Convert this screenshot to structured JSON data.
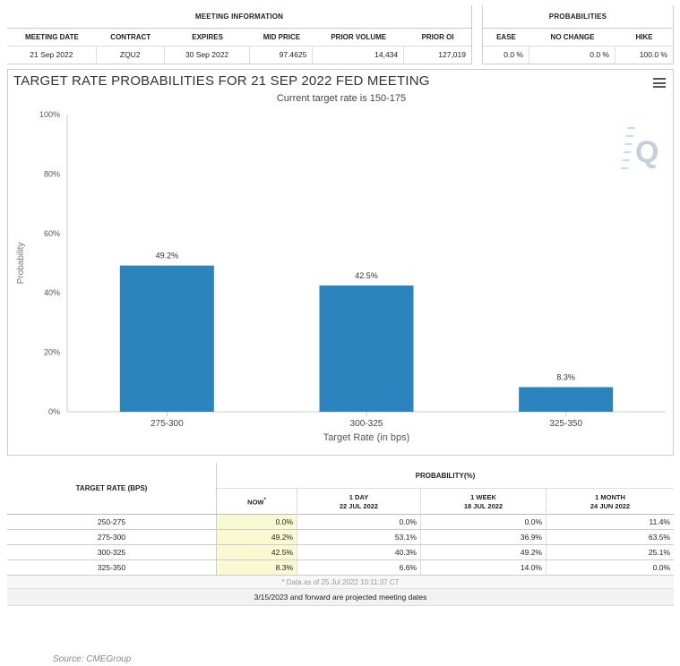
{
  "meeting_info": {
    "title": "MEETING INFORMATION",
    "headers": [
      "MEETING DATE",
      "CONTRACT",
      "EXPIRES",
      "MID PRICE",
      "PRIOR VOLUME",
      "PRIOR OI"
    ],
    "values": [
      "21 Sep 2022",
      "ZQU2",
      "30 Sep 2022",
      "97.4625",
      "14,434",
      "127,019"
    ]
  },
  "probabilities": {
    "title": "PROBABILITIES",
    "headers": [
      "EASE",
      "NO CHANGE",
      "HIKE"
    ],
    "values": [
      "0.0 %",
      "0.0 %",
      "100.0 %"
    ]
  },
  "chart_data": {
    "type": "bar",
    "title": "TARGET RATE PROBABILITIES FOR 21 SEP 2022 FED MEETING",
    "subtitle": "Current target rate is 150-175",
    "xlabel": "Target Rate (in bps)",
    "ylabel": "Probability",
    "categories": [
      "275-300",
      "300-325",
      "325-350"
    ],
    "values": [
      49.2,
      42.5,
      8.3
    ],
    "data_labels": [
      "49.2%",
      "42.5%",
      "8.3%"
    ],
    "ylim": [
      0,
      100
    ],
    "yticks": [
      0,
      20,
      40,
      60,
      80,
      100
    ],
    "ytick_labels": [
      "0%",
      "20%",
      "40%",
      "60%",
      "80%",
      "100%"
    ],
    "bar_color": "#2b84bd",
    "grid": false,
    "watermark": "Q"
  },
  "bottom_table": {
    "target_header": "TARGET RATE (BPS)",
    "prob_header": "PROBABILITY(%)",
    "columns": [
      {
        "line1": "NOW",
        "line2": "",
        "sup": "*"
      },
      {
        "line1": "1 DAY",
        "line2": "22 JUL 2022",
        "sup": ""
      },
      {
        "line1": "1 WEEK",
        "line2": "18 JUL 2022",
        "sup": ""
      },
      {
        "line1": "1 MONTH",
        "line2": "24 JUN 2022",
        "sup": ""
      }
    ],
    "rows": [
      {
        "rate": "250-275",
        "now": "0.0%",
        "day": "0.0%",
        "week": "0.0%",
        "month": "11.4%"
      },
      {
        "rate": "275-300",
        "now": "49.2%",
        "day": "53.1%",
        "week": "36.9%",
        "month": "63.5%"
      },
      {
        "rate": "300-325",
        "now": "42.5%",
        "day": "40.3%",
        "week": "49.2%",
        "month": "25.1%"
      },
      {
        "rate": "325-350",
        "now": "8.3%",
        "day": "6.6%",
        "week": "14.0%",
        "month": "0.0%"
      }
    ],
    "note": "* Data as of 25 Jul 2022 10:11:37 CT",
    "footer": "3/15/2023 and forward are projected meeting dates"
  },
  "source": "Source: CMEGroup",
  "icons": {
    "menu": "hamburger-menu-icon"
  }
}
